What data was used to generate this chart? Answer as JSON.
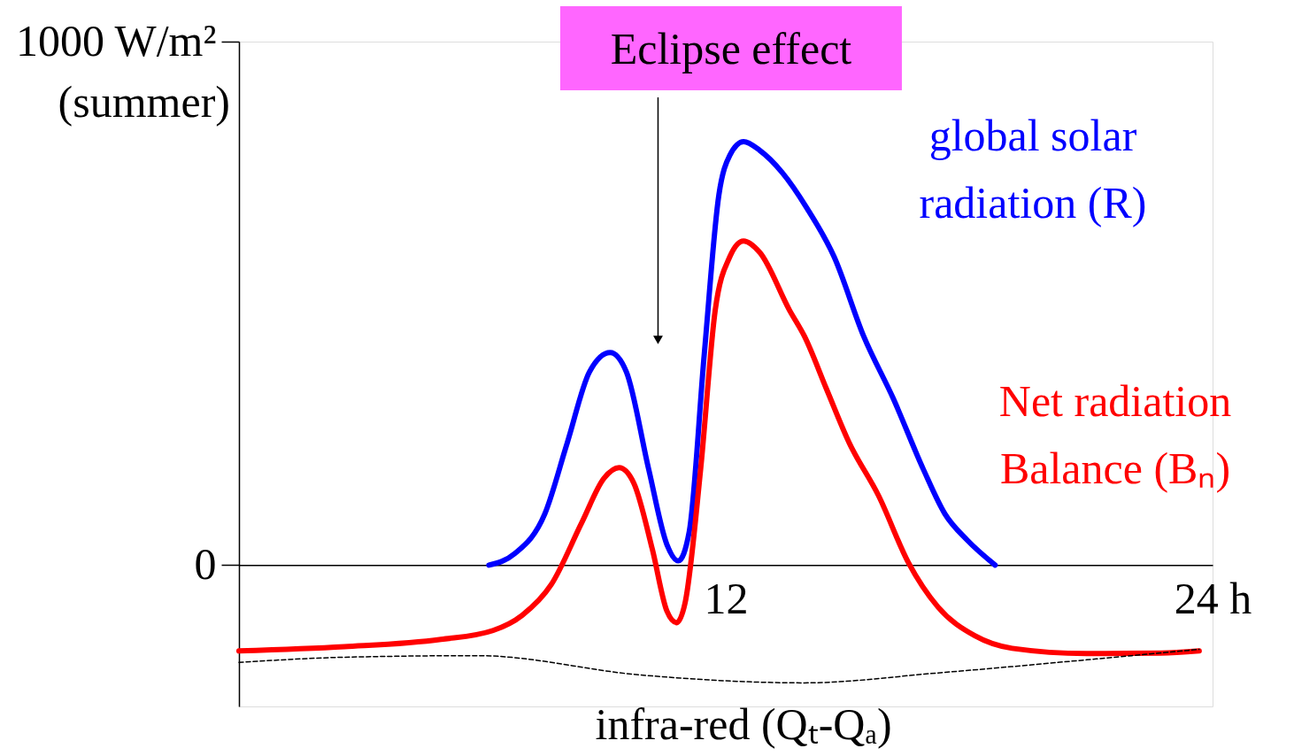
{
  "chart_data": {
    "type": "line",
    "xlim": [
      0,
      24
    ],
    "ylim": [
      -270,
      1000
    ],
    "xticks": [
      {
        "value": 12,
        "label": "12"
      },
      {
        "value": 24,
        "label": "24 h"
      }
    ],
    "yticks": [
      0,
      {
        "value": 1000,
        "label": "1000 W/m²"
      }
    ],
    "grid": false,
    "legend": false,
    "marker": "none",
    "series": [
      {
        "name": "global solar radiation (R)",
        "color": "#0000ff",
        "line_style": "solid",
        "x": [
          6.16,
          6.8,
          7.54,
          8.09,
          8.64,
          9.15,
          9.55,
          10.1,
          10.55,
          10.83,
          11.1,
          11.47,
          11.83,
          12.1,
          12.44,
          12.84,
          13.39,
          14.0,
          14.67,
          15.4,
          16.13,
          16.87,
          17.4,
          17.96,
          18.64
        ],
        "values": [
          0,
          22,
          98,
          233,
          369,
          406,
          369,
          183,
          39,
          8,
          64,
          403,
          707,
          783,
          809,
          792,
          750,
          682,
          589,
          437,
          318,
          183,
          98,
          47,
          0
        ]
      },
      {
        "name": "Net radiation Balance (Bₙ)",
        "color": "#ff0000",
        "line_style": "solid",
        "x": [
          0,
          2.6,
          4.98,
          6.26,
          6.98,
          7.7,
          8.45,
          9.0,
          9.37,
          9.73,
          10.19,
          10.55,
          10.79,
          11.0,
          11.38,
          11.74,
          12.1,
          12.44,
          12.84,
          13.57,
          13.94,
          14.49,
          15.04,
          15.77,
          16.5,
          17.23,
          18.14,
          19.06,
          20.89,
          22.72,
          23.67
        ],
        "values": [
          -164,
          -156,
          -142,
          -125,
          -96,
          -37,
          81,
          166,
          186,
          157,
          30,
          -88,
          -110,
          -71,
          183,
          487,
          589,
          619,
          597,
          487,
          437,
          335,
          234,
          132,
          5,
          -80,
          -135,
          -159,
          -169,
          -168,
          -164
        ]
      },
      {
        "name": "infra-red (Qₜ-Qₐ)",
        "color": "#000000",
        "line_style": "dashed",
        "x": [
          0,
          2.6,
          5.89,
          9.91,
          13.94,
          17.23,
          20.89,
          23.67
        ],
        "values": [
          -186,
          -176,
          -173,
          -210,
          -225,
          -206,
          -181,
          -161
        ]
      }
    ],
    "annotations": [
      "(summer)",
      "Eclipse effect"
    ]
  }
}
